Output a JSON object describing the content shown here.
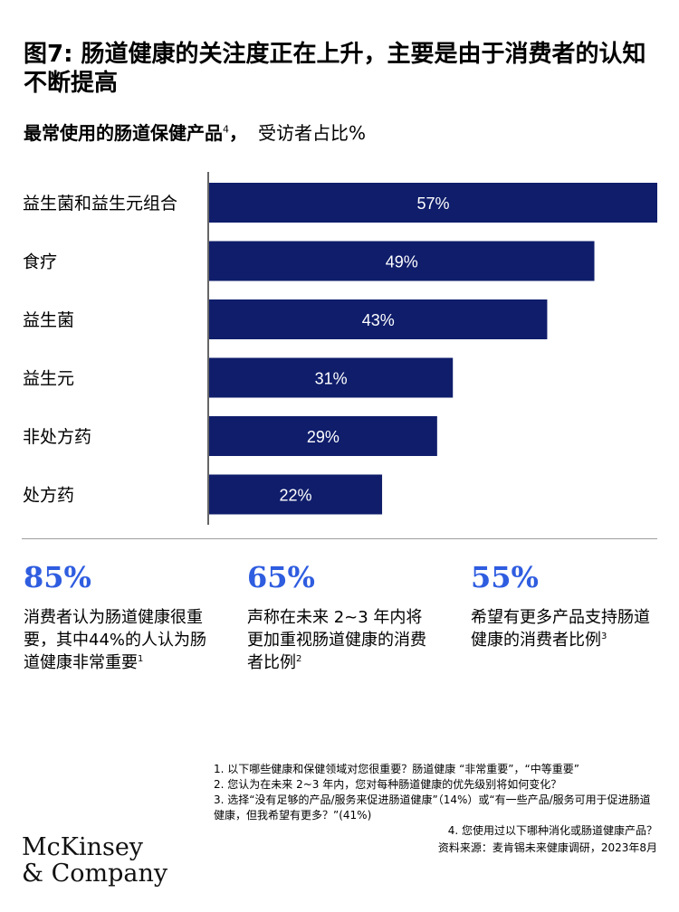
{
  "title": "图7: 肠道健康的关注度正在上升，主要是由于消费者的认知不断提高",
  "subtitle": {
    "main": "最常使用的肠道保健产品",
    "footnote_mark": "4",
    "suffix": "，",
    "rest": "受访者占比%"
  },
  "chart_data": {
    "type": "bar",
    "orientation": "horizontal",
    "categories": [
      "益生菌和益生元组合",
      "食疗",
      "益生菌",
      "益生元",
      "非处方药",
      "处方药"
    ],
    "values": [
      57,
      49,
      43,
      31,
      29,
      22
    ],
    "value_labels": [
      "57%",
      "49%",
      "43%",
      "31%",
      "29%",
      "22%"
    ],
    "bar_color": "#0f1d6b",
    "label_color": "#ffffff",
    "xlim": [
      0,
      57
    ]
  },
  "stats": [
    {
      "value": "85%",
      "text": "消费者认为肠道健康很重要，其中44%的人认为肠道健康非常重要",
      "footnote_mark": "1"
    },
    {
      "value": "65%",
      "text": "声称在未来 2~3 年内将更加重视肠道健康的消费者比例",
      "footnote_mark": "2"
    },
    {
      "value": "55%",
      "text": "希望有更多产品支持肠道健康的消费者比例",
      "footnote_mark": "3"
    }
  ],
  "notes": [
    "1.   以下哪些健康和保健领域对您很重要？肠道健康 “非常重要”，“中等重要”",
    "2.   您认为在未来 2~3 年内，您对每种肠道健康的优先级别将如何变化？",
    "3.   选择“没有足够的产品/服务来促进肠道健康”（14%）或“有一些产品/服务可用于促进肠道健康，但我希望有更多？”(41%)",
    "4.   您使用过以下哪种消化或肠道健康产品？"
  ],
  "source": "资料来源：麦肯锡未来健康调研，2023年8月",
  "logo": {
    "line1": "McKinsey",
    "line2": "& Company"
  },
  "colors": {
    "accent_blue": "#2f5de0",
    "bar_navy": "#0f1d6b"
  }
}
